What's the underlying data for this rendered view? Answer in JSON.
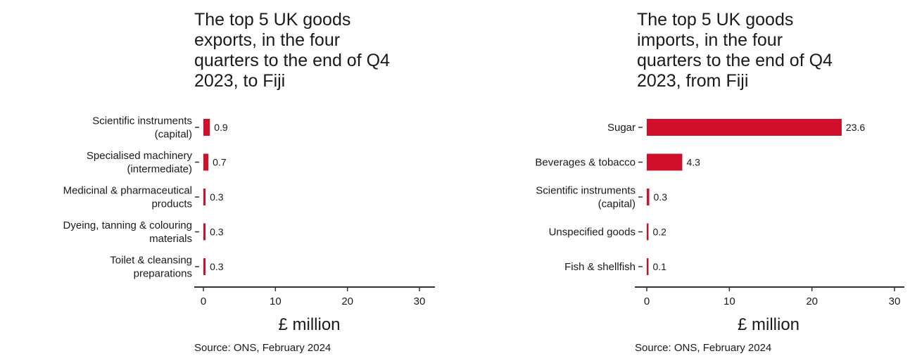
{
  "colors": {
    "bar": "#d0102b",
    "axis": "#333333",
    "text": "#1a1a1a"
  },
  "chart_data": [
    {
      "type": "bar",
      "orientation": "horizontal",
      "title": "The top 5 UK goods\nexports, in the four\nquarters to the end of Q4\n2023, to Fiji",
      "categories": [
        [
          "Scientific instruments",
          "(capital)"
        ],
        [
          "Specialised machinery",
          "(intermediate)"
        ],
        [
          "Medicinal & pharmaceutical",
          "products"
        ],
        [
          "Dyeing, tanning & colouring",
          "materials"
        ],
        [
          "Toilet & cleansing",
          "preparations"
        ]
      ],
      "values": [
        0.9,
        0.7,
        0.3,
        0.3,
        0.3
      ],
      "value_labels": [
        "0.9",
        "0.7",
        "0.3",
        "0.3",
        "0.3"
      ],
      "xlabel": "£ million",
      "xlim": [
        0,
        30
      ],
      "xticks": [
        "0",
        "10",
        "20",
        "30"
      ],
      "grid": false,
      "source": "Source: ONS, February 2024"
    },
    {
      "type": "bar",
      "orientation": "horizontal",
      "title": "The top 5 UK goods\nimports, in the four\nquarters to the end of Q4\n2023, from Fiji",
      "categories": [
        [
          "Sugar"
        ],
        [
          "Beverages & tobacco"
        ],
        [
          "Scientific instruments",
          "(capital)"
        ],
        [
          "Unspecified goods"
        ],
        [
          "Fish & shellfish"
        ]
      ],
      "values": [
        23.6,
        4.3,
        0.3,
        0.2,
        0.1
      ],
      "value_labels": [
        "23.6",
        "4.3",
        "0.3",
        "0.2",
        "0.1"
      ],
      "xlabel": "£ million",
      "xlim": [
        0,
        30
      ],
      "xticks": [
        "0",
        "10",
        "20",
        "30"
      ],
      "grid": false,
      "source": "Source: ONS, February 2024"
    }
  ]
}
